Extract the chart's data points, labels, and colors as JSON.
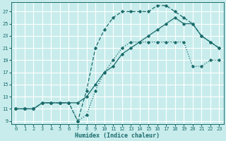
{
  "xlabel": "Humidex (Indice chaleur)",
  "bg_color": "#c8ecec",
  "grid_color": "#ffffff",
  "line_color": "#1a6b6b",
  "xlim": [
    -0.5,
    23.5
  ],
  "ylim": [
    8.5,
    28.5
  ],
  "xticks": [
    0,
    1,
    2,
    3,
    4,
    5,
    6,
    7,
    8,
    9,
    10,
    11,
    12,
    13,
    14,
    15,
    16,
    17,
    18,
    19,
    20,
    21,
    22,
    23
  ],
  "yticks": [
    9,
    11,
    13,
    15,
    17,
    19,
    21,
    23,
    25,
    27
  ],
  "curve1_x": [
    0,
    1,
    2,
    3,
    4,
    5,
    6,
    7,
    8,
    9,
    10,
    11,
    12,
    13,
    14,
    15,
    16,
    17,
    18,
    19,
    20,
    21,
    22,
    23
  ],
  "curve1_y": [
    11,
    11,
    11,
    12,
    12,
    12,
    12,
    9,
    10,
    14,
    17,
    19,
    21,
    22,
    22,
    22,
    22,
    22,
    22,
    22,
    18,
    18,
    19,
    19
  ],
  "curve2_x": [
    0,
    1,
    2,
    3,
    4,
    5,
    6,
    7,
    8,
    9,
    10,
    11,
    12,
    13,
    14,
    15,
    16,
    17,
    18,
    19,
    20,
    21,
    22,
    23
  ],
  "curve2_y": [
    11,
    11,
    11,
    12,
    12,
    12,
    12,
    12,
    13,
    15,
    17,
    18,
    20,
    21,
    22,
    23,
    24,
    25,
    26,
    25,
    25,
    23,
    22,
    21
  ],
  "curve3_x": [
    0,
    1,
    2,
    3,
    4,
    5,
    6,
    7,
    8,
    9,
    10,
    11,
    12,
    13,
    14,
    15,
    16,
    17,
    18,
    19,
    20,
    21,
    22,
    23
  ],
  "curve3_y": [
    11,
    11,
    11,
    12,
    12,
    12,
    12,
    9,
    14,
    21,
    24,
    26,
    27,
    27,
    27,
    27,
    28,
    28,
    27,
    26,
    25,
    23,
    22,
    21
  ]
}
